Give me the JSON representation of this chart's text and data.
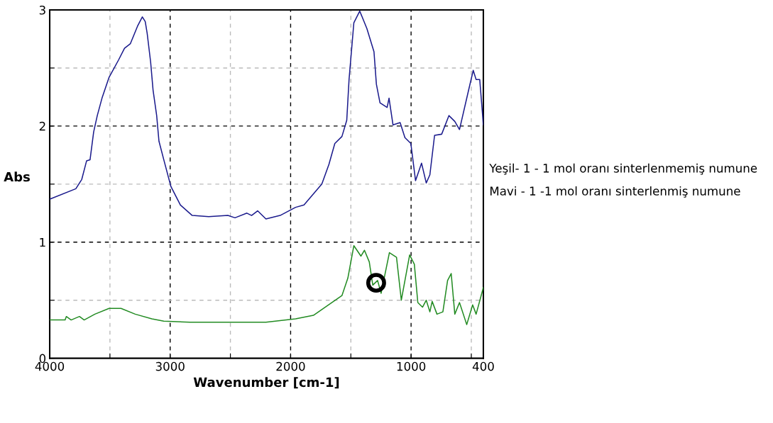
{
  "chart_data": {
    "type": "line",
    "xlabel": "Wavenumber [cm-1]",
    "ylabel": "Abs",
    "xlim": [
      4000,
      400
    ],
    "ylim": [
      0,
      3
    ],
    "xticks": [
      4000,
      {
        "value": 3500,
        "label": null
      },
      3000,
      {
        "value": 2500,
        "label": null
      },
      2000,
      {
        "value": 1500,
        "label": null
      },
      1000,
      {
        "value": 500,
        "label": null
      },
      400
    ],
    "yticks": [
      0,
      {
        "value": 0.5,
        "label": null
      },
      1,
      {
        "value": 1.5,
        "label": null
      },
      2,
      {
        "value": 2.5,
        "label": null
      },
      3
    ],
    "grid": true,
    "line_style": "solid",
    "annotations": [
      "Yeşil- 1 - 1 mol oranı sinterlenmemiş numune",
      "Mavi - 1 -1 mol oranı sinterlenmiş numune"
    ],
    "series": [
      {
        "color": "#1a1a8c",
        "x": [
          4000,
          3783,
          3734,
          3694,
          3665,
          3635,
          3605,
          3566,
          3507,
          3428,
          3379,
          3330,
          3271,
          3231,
          3207,
          3191,
          3162,
          3142,
          3112,
          3093,
          3053,
          2994,
          2915,
          2817,
          2680,
          2521,
          2462,
          2363,
          2324,
          2274,
          2205,
          2087,
          1959,
          1889,
          1741,
          1682,
          1633,
          1574,
          1534,
          1515,
          1475,
          1426,
          1367,
          1308,
          1288,
          1258,
          1199,
          1183,
          1150,
          1091,
          1051,
          1002,
          963,
          913,
          874,
          844,
          805,
          746,
          686,
          637,
          598,
          529,
          484,
          460,
          430,
          400
        ],
        "values": [
          1.37,
          1.46,
          1.54,
          1.7,
          1.71,
          1.95,
          2.09,
          2.24,
          2.42,
          2.57,
          2.67,
          2.71,
          2.86,
          2.94,
          2.9,
          2.8,
          2.55,
          2.31,
          2.09,
          1.87,
          1.71,
          1.48,
          1.32,
          1.23,
          1.22,
          1.23,
          1.21,
          1.25,
          1.23,
          1.27,
          1.2,
          1.23,
          1.3,
          1.32,
          1.5,
          1.67,
          1.85,
          1.91,
          2.05,
          2.4,
          2.89,
          2.99,
          2.84,
          2.64,
          2.36,
          2.2,
          2.16,
          2.24,
          2.01,
          2.03,
          1.9,
          1.85,
          1.53,
          1.68,
          1.51,
          1.58,
          1.92,
          1.93,
          2.09,
          2.04,
          1.97,
          2.28,
          2.48,
          2.4,
          2.4,
          2.01
        ]
      },
      {
        "color": "#228b22",
        "x": [
          4000,
          3872,
          3862,
          3822,
          3753,
          3714,
          3625,
          3507,
          3408,
          3290,
          3152,
          3053,
          2836,
          2205,
          1959,
          1811,
          1574,
          1525,
          1475,
          1416,
          1387,
          1347,
          1318,
          1278,
          1249,
          1180,
          1121,
          1081,
          1012,
          973,
          944,
          905,
          874,
          844,
          825,
          785,
          736,
          697,
          667,
          637,
          598,
          538,
          489,
          460,
          400
        ],
        "values": [
          0.33,
          0.33,
          0.36,
          0.33,
          0.36,
          0.33,
          0.38,
          0.43,
          0.43,
          0.38,
          0.34,
          0.32,
          0.31,
          0.31,
          0.34,
          0.37,
          0.54,
          0.69,
          0.97,
          0.88,
          0.93,
          0.83,
          0.63,
          0.67,
          0.56,
          0.91,
          0.87,
          0.5,
          0.89,
          0.81,
          0.48,
          0.44,
          0.5,
          0.4,
          0.49,
          0.38,
          0.4,
          0.67,
          0.73,
          0.38,
          0.48,
          0.29,
          0.46,
          0.38,
          0.61
        ]
      },
      {
        "type": "scatter",
        "marker": "circle",
        "color": "#000000",
        "x": [
          1290
        ],
        "values": [
          0.65
        ]
      }
    ]
  }
}
